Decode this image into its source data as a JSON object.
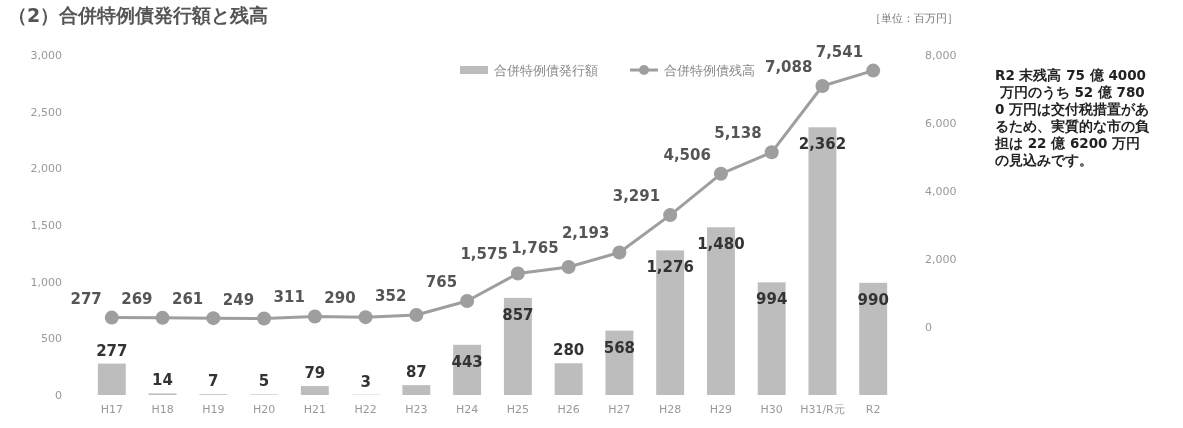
{
  "chart_data": {
    "type": "bar",
    "title": "（2）合併特例債発行額と残高",
    "categories": [
      "H17",
      "H18",
      "H19",
      "H20",
      "H21",
      "H22",
      "H23",
      "H24",
      "H25",
      "H26",
      "H27",
      "H28",
      "H29",
      "H30",
      "H31/R元",
      "R2"
    ],
    "series": [
      {
        "name": "合併特例債発行額",
        "color": "#bdbdbd",
        "values": [
          277,
          14,
          7,
          5,
          79,
          3,
          87,
          443,
          857,
          280,
          568,
          1276,
          1480,
          994,
          2362,
          990
        ],
        "value_labels": [
          "277",
          "14",
          "7",
          "5",
          "79",
          "3",
          "87",
          "443",
          "857",
          "280",
          "568",
          "1,276",
          "1,480",
          "994",
          "2,362",
          "990"
        ]
      },
      {
        "name": "合併特例債残高",
        "type": "line",
        "axis": "y2",
        "color": "#9e9e9e",
        "marker": "circle",
        "values": [
          277,
          269,
          261,
          249,
          311,
          290,
          352,
          765,
          1575,
          1765,
          2193,
          3291,
          4506,
          5138,
          7088,
          7541
        ],
        "value_labels": [
          "277",
          "269",
          "261",
          "249",
          "311",
          "290",
          "352",
          "765",
          "1,575",
          "1,765",
          "2,193",
          "3,291",
          "4,506",
          "5,138",
          "7,088",
          "7,541"
        ]
      }
    ],
    "ylim": [
      0,
      3000
    ],
    "yticks": [
      0,
      {
        "value": 500,
        "label": "500"
      },
      {
        "value": 1000,
        "label": "1,000"
      },
      {
        "value": 1500,
        "label": "1,500"
      },
      {
        "value": 2000,
        "label": "2,000"
      },
      {
        "value": 2500,
        "label": "2,500"
      },
      {
        "value": 3000,
        "label": "3,000"
      }
    ],
    "y2lim": [
      -2000,
      8000
    ],
    "y2ticks": [
      0,
      {
        "value": 2000,
        "label": "2,000"
      },
      {
        "value": 4000,
        "label": "4,000"
      },
      {
        "value": 6000,
        "label": "6,000"
      },
      {
        "value": 8000,
        "label": "8,000"
      }
    ],
    "legend": "top",
    "grid": false,
    "annotations": [
      "［単位：百万円］",
      "R2 末残高 75 億 4000 万円のうち 52 億 7800 万円は交付税措置があるため、実質的な市の負担は 22 億 6200 万円の見込みです。"
    ]
  }
}
